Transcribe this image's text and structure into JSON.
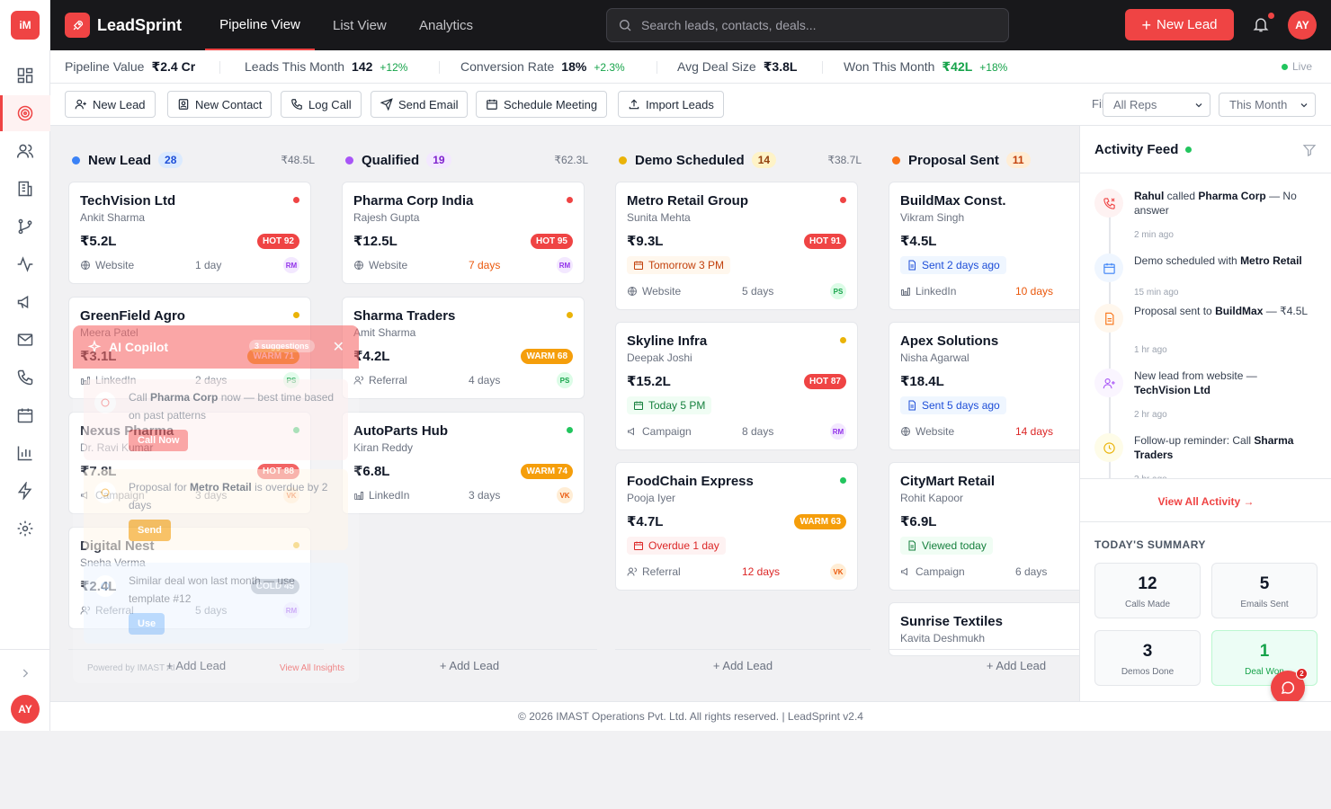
{
  "app": {
    "logo_text": "iM",
    "brand": "LeadSprint",
    "user_initials": "AY"
  },
  "colors": {
    "accent": "#ef4444",
    "dark": "#18181b",
    "hot": "#ef4444",
    "warm": "#f59e0b",
    "cold": "#9ca3af",
    "success": "#16a34a"
  },
  "rail": {
    "items": [
      "dashboard-icon",
      "target-icon",
      "users-icon",
      "building-icon",
      "pipeline-icon",
      "activity-icon",
      "megaphone-icon",
      "mail-icon",
      "phone-icon",
      "calendar-icon",
      "chart-icon",
      "zap-icon",
      "settings-icon"
    ],
    "active": 1
  },
  "nav": {
    "tabs": [
      "Pipeline View",
      "List View",
      "Analytics"
    ],
    "active": 0
  },
  "search": {
    "placeholder": "Search leads, contacts, deals..."
  },
  "header": {
    "new_lead": "New Lead",
    "notification_dot": true
  },
  "stats": [
    {
      "label": "Pipeline Value",
      "value": "₹2.4 Cr",
      "delta": ""
    },
    {
      "label": "Leads This Month",
      "value": "142",
      "delta": "+12%"
    },
    {
      "label": "Conversion Rate",
      "value": "18%",
      "delta": "+2.3%"
    },
    {
      "label": "Avg Deal Size",
      "value": "₹3.8L",
      "delta": ""
    },
    {
      "label": "Won This Month",
      "value": "₹42L",
      "delta": "+18%"
    }
  ],
  "live_label": "Live",
  "actions": [
    "New Lead",
    "New Contact",
    "Log Call",
    "Send Email",
    "Schedule Meeting",
    "Import Leads"
  ],
  "filter": {
    "label": "Filter:",
    "rep": "All Reps",
    "period": "This Month"
  },
  "add_lead": "+ Add Lead",
  "columns": [
    {
      "title": "New Lead",
      "count": "28",
      "total": "₹48.5L",
      "color": "#3b82f6",
      "cards": [
        {
          "name": "TechVision Ltd",
          "contact": "Ankit Sharma",
          "amount": "₹5.2L",
          "temp": "HOT 92",
          "level": "hot",
          "source": "Website",
          "age": "1 day",
          "rep": "RM",
          "priority": "#ef4444"
        },
        {
          "name": "GreenField Agro",
          "contact": "Meera Patel",
          "amount": "₹3.1L",
          "temp": "WARM 71",
          "level": "warm",
          "source": "LinkedIn",
          "age": "2 days",
          "rep": "PS",
          "priority": "#eab308"
        },
        {
          "name": "Nexus Pharma",
          "contact": "Dr. Ravi Kumar",
          "amount": "₹7.8L",
          "temp": "HOT 88",
          "level": "hot",
          "source": "Campaign",
          "age": "3 days",
          "rep": "VK",
          "priority": "#22c55e"
        },
        {
          "name": "Digital Nest",
          "contact": "Sneha Verma",
          "amount": "₹2.4L",
          "temp": "COLD 45",
          "level": "cold",
          "source": "Referral",
          "age": "5 days",
          "rep": "RM",
          "priority": "#eab308"
        }
      ]
    },
    {
      "title": "Qualified",
      "count": "19",
      "total": "₹62.3L",
      "color": "#a855f7",
      "cards": [
        {
          "name": "Pharma Corp India",
          "contact": "Rajesh Gupta",
          "amount": "₹12.5L",
          "temp": "HOT 95",
          "level": "hot",
          "source": "Website",
          "age": "7 days",
          "age_state": "warn",
          "rep": "RM",
          "priority": "#ef4444"
        },
        {
          "name": "Sharma Traders",
          "contact": "Amit Sharma",
          "amount": "₹4.2L",
          "temp": "WARM 68",
          "level": "warm",
          "source": "Referral",
          "age": "4 days",
          "rep": "PS",
          "priority": "#eab308"
        },
        {
          "name": "AutoParts Hub",
          "contact": "Kiran Reddy",
          "amount": "₹6.8L",
          "temp": "WARM 74",
          "level": "warm",
          "source": "LinkedIn",
          "age": "3 days",
          "rep": "VK",
          "priority": "#22c55e"
        }
      ]
    },
    {
      "title": "Demo Scheduled",
      "count": "14",
      "total": "₹38.7L",
      "color": "#eab308",
      "cards": [
        {
          "name": "Metro Retail Group",
          "contact": "Sunita Mehta",
          "amount": "₹9.3L",
          "temp": "HOT 91",
          "level": "hot",
          "meeting": "Tomorrow 3 PM",
          "meeting_state": "soon",
          "source": "Website",
          "age": "5 days",
          "rep": "PS",
          "priority": "#ef4444"
        },
        {
          "name": "Skyline Infra",
          "contact": "Deepak Joshi",
          "amount": "₹15.2L",
          "temp": "HOT 87",
          "level": "hot",
          "meeting": "Today 5 PM",
          "meeting_state": "today",
          "source": "Campaign",
          "age": "8 days",
          "rep": "RM",
          "priority": "#eab308"
        },
        {
          "name": "FoodChain Express",
          "contact": "Pooja Iyer",
          "amount": "₹4.7L",
          "temp": "WARM 63",
          "level": "warm",
          "meeting": "Overdue 1 day",
          "meeting_state": "overdue",
          "source": "Referral",
          "age": "12 days",
          "age_state": "bad",
          "rep": "VK",
          "priority": "#22c55e"
        }
      ]
    },
    {
      "title": "Proposal Sent",
      "count": "11",
      "total": "",
      "color": "#f97316",
      "cards": [
        {
          "name": "BuildMax Const.",
          "contact": "Vikram Singh",
          "amount": "₹4.5L",
          "temp": "",
          "level": "hot",
          "meeting": "Sent 2 days ago",
          "meeting_state": "sent",
          "source": "LinkedIn",
          "age": "10 days",
          "age_state": "warn",
          "rep": "",
          "priority": ""
        },
        {
          "name": "Apex Solutions",
          "contact": "Nisha Agarwal",
          "amount": "₹18.4L",
          "temp": "W",
          "level": "warm",
          "meeting": "Sent 5 days ago",
          "meeting_state": "sent",
          "source": "Website",
          "age": "14 days",
          "age_state": "bad",
          "rep": "",
          "priority": ""
        },
        {
          "name": "CityMart Retail",
          "contact": "Rohit Kapoor",
          "amount": "₹6.9L",
          "temp": "W",
          "level": "warm",
          "meeting": "Viewed today",
          "meeting_state": "viewed",
          "source": "Campaign",
          "age": "6 days",
          "rep": "",
          "priority": ""
        },
        {
          "name": "Sunrise Textiles",
          "contact": "Kavita Deshmukh",
          "amount": "",
          "temp": "",
          "level": "warm",
          "source": "",
          "age": "",
          "rep": "",
          "priority": ""
        }
      ]
    }
  ],
  "copilot": {
    "title": "AI Copilot",
    "chip": "3 suggestions",
    "insights": [
      {
        "pre": "Call ",
        "bold": "Pharma Corp",
        "post": " now — best time based on past patterns",
        "button": "Call Now"
      },
      {
        "pre": "Proposal for ",
        "bold": "Metro Retail",
        "post": " is overdue by 2 days",
        "button": "Send"
      },
      {
        "pre": "Similar deal won last month — use template #12",
        "bold": "",
        "post": "",
        "button": "Use"
      }
    ],
    "powered": "Powered by IMAST AI",
    "view_all": "View All Insights"
  },
  "activity": {
    "title": "Activity Feed",
    "items": [
      {
        "kind": "call",
        "b1": "Rahul",
        "t1": " called ",
        "b2": "Pharma Corp",
        "t2": " — No answer",
        "time": "2 min ago"
      },
      {
        "kind": "calendar",
        "b1": "",
        "t1": "Demo scheduled with ",
        "b2": "Metro Retail",
        "t2": "",
        "time": "15 min ago"
      },
      {
        "kind": "doc",
        "b1": "",
        "t1": "Proposal sent to ",
        "b2": "BuildMax",
        "t2": " — ₹4.5L",
        "time": "1 hr ago"
      },
      {
        "kind": "user",
        "b1": "",
        "t1": "New lead from website — ",
        "b2": "TechVision Ltd",
        "t2": "",
        "time": "2 hr ago"
      },
      {
        "kind": "clock",
        "b1": "",
        "t1": "Follow-up reminder: Call ",
        "b2": "Sharma Traders",
        "t2": "",
        "time": "3 hr ago"
      }
    ],
    "view_all": "View All Activity →"
  },
  "summary": {
    "title": "TODAY'S SUMMARY",
    "items": [
      {
        "value": "12",
        "label": "Calls Made"
      },
      {
        "value": "5",
        "label": "Emails Sent"
      },
      {
        "value": "3",
        "label": "Demos Done"
      },
      {
        "value": "1",
        "label": "Deal Won"
      }
    ]
  },
  "chat_badge": "2",
  "footer": "© 2026 IMAST Operations Pvt. Ltd. All rights reserved. | LeadSprint v2.4"
}
